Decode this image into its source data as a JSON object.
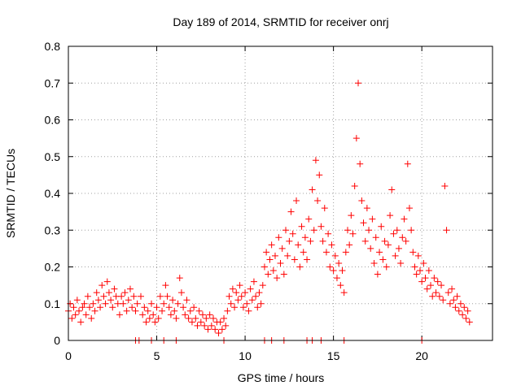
{
  "chart_data": {
    "type": "scatter",
    "title": "Day 189 of 2014, SRMTID for receiver onrj",
    "xlabel": "GPS time / hours",
    "ylabel": "SRMTID / TECUs",
    "xlim": [
      0,
      24
    ],
    "ylim": [
      0,
      0.8
    ],
    "xticks": [
      "0",
      "5",
      "10",
      "15",
      "20"
    ],
    "xtick_values": [
      0,
      5,
      10,
      15,
      20
    ],
    "yticks": [
      "0",
      "0.1",
      "0.2",
      "0.3",
      "0.4",
      "0.5",
      "0.6",
      "0.7",
      "0.8"
    ],
    "ytick_values": [
      0,
      0.1,
      0.2,
      0.3,
      0.4,
      0.5,
      0.6,
      0.7,
      0.8
    ],
    "grid": true,
    "marker": "+",
    "color": "#ff0000",
    "series": [
      {
        "name": "SRMTID",
        "points": [
          [
            0.0,
            0.08
          ],
          [
            0.1,
            0.1
          ],
          [
            0.2,
            0.06
          ],
          [
            0.3,
            0.09
          ],
          [
            0.4,
            0.07
          ],
          [
            0.5,
            0.11
          ],
          [
            0.6,
            0.08
          ],
          [
            0.7,
            0.05
          ],
          [
            0.8,
            0.09
          ],
          [
            0.9,
            0.1
          ],
          [
            1.0,
            0.07
          ],
          [
            1.1,
            0.12
          ],
          [
            1.2,
            0.09
          ],
          [
            1.3,
            0.06
          ],
          [
            1.4,
            0.1
          ],
          [
            1.5,
            0.08
          ],
          [
            1.6,
            0.13
          ],
          [
            1.7,
            0.11
          ],
          [
            1.8,
            0.09
          ],
          [
            1.9,
            0.15
          ],
          [
            2.0,
            0.12
          ],
          [
            2.1,
            0.1
          ],
          [
            2.2,
            0.16
          ],
          [
            2.3,
            0.13
          ],
          [
            2.4,
            0.11
          ],
          [
            2.5,
            0.09
          ],
          [
            2.6,
            0.14
          ],
          [
            2.7,
            0.12
          ],
          [
            2.8,
            0.1
          ],
          [
            2.9,
            0.07
          ],
          [
            3.0,
            0.12
          ],
          [
            3.1,
            0.1
          ],
          [
            3.2,
            0.13
          ],
          [
            3.3,
            0.08
          ],
          [
            3.4,
            0.11
          ],
          [
            3.5,
            0.14
          ],
          [
            3.6,
            0.09
          ],
          [
            3.7,
            0.12
          ],
          [
            3.8,
            0.08
          ],
          [
            3.9,
            0.1
          ],
          [
            4.1,
            0.12
          ],
          [
            4.2,
            0.07
          ],
          [
            4.3,
            0.09
          ],
          [
            4.4,
            0.05
          ],
          [
            4.5,
            0.08
          ],
          [
            4.6,
            0.06
          ],
          [
            4.7,
            0.1
          ],
          [
            4.8,
            0.07
          ],
          [
            4.9,
            0.05
          ],
          [
            5.0,
            0.09
          ],
          [
            5.1,
            0.06
          ],
          [
            5.2,
            0.12
          ],
          [
            5.3,
            0.08
          ],
          [
            5.4,
            0.1
          ],
          [
            5.5,
            0.15
          ],
          [
            5.6,
            0.12
          ],
          [
            5.7,
            0.09
          ],
          [
            5.8,
            0.07
          ],
          [
            5.9,
            0.11
          ],
          [
            6.0,
            0.08
          ],
          [
            6.1,
            0.06
          ],
          [
            6.2,
            0.1
          ],
          [
            6.3,
            0.17
          ],
          [
            6.4,
            0.13
          ],
          [
            6.5,
            0.09
          ],
          [
            6.6,
            0.07
          ],
          [
            6.7,
            0.11
          ],
          [
            6.8,
            0.06
          ],
          [
            6.9,
            0.08
          ],
          [
            7.0,
            0.05
          ],
          [
            7.1,
            0.09
          ],
          [
            7.2,
            0.06
          ],
          [
            7.3,
            0.04
          ],
          [
            7.4,
            0.08
          ],
          [
            7.5,
            0.05
          ],
          [
            7.6,
            0.07
          ],
          [
            7.7,
            0.04
          ],
          [
            7.8,
            0.06
          ],
          [
            7.9,
            0.03
          ],
          [
            8.0,
            0.07
          ],
          [
            8.1,
            0.04
          ],
          [
            8.2,
            0.06
          ],
          [
            8.3,
            0.03
          ],
          [
            8.4,
            0.05
          ],
          [
            8.5,
            0.02
          ],
          [
            8.6,
            0.05
          ],
          [
            8.7,
            0.03
          ],
          [
            8.8,
            0.06
          ],
          [
            8.9,
            0.04
          ],
          [
            9.0,
            0.08
          ],
          [
            9.1,
            0.12
          ],
          [
            9.2,
            0.1
          ],
          [
            9.3,
            0.14
          ],
          [
            9.4,
            0.09
          ],
          [
            9.5,
            0.13
          ],
          [
            9.6,
            0.11
          ],
          [
            9.7,
            0.15
          ],
          [
            9.8,
            0.12
          ],
          [
            9.9,
            0.09
          ],
          [
            10.0,
            0.13
          ],
          [
            10.1,
            0.1
          ],
          [
            10.2,
            0.08
          ],
          [
            10.3,
            0.14
          ],
          [
            10.4,
            0.11
          ],
          [
            10.5,
            0.16
          ],
          [
            10.6,
            0.12
          ],
          [
            10.7,
            0.09
          ],
          [
            10.8,
            0.13
          ],
          [
            10.9,
            0.1
          ],
          [
            11.0,
            0.15
          ],
          [
            11.1,
            0.2
          ],
          [
            11.2,
            0.24
          ],
          [
            11.3,
            0.18
          ],
          [
            11.4,
            0.22
          ],
          [
            11.5,
            0.26
          ],
          [
            11.6,
            0.19
          ],
          [
            11.7,
            0.23
          ],
          [
            11.8,
            0.17
          ],
          [
            11.9,
            0.28
          ],
          [
            12.0,
            0.21
          ],
          [
            12.1,
            0.25
          ],
          [
            12.2,
            0.18
          ],
          [
            12.3,
            0.3
          ],
          [
            12.4,
            0.23
          ],
          [
            12.5,
            0.27
          ],
          [
            12.6,
            0.35
          ],
          [
            12.7,
            0.29
          ],
          [
            12.8,
            0.22
          ],
          [
            12.9,
            0.38
          ],
          [
            13.0,
            0.26
          ],
          [
            13.1,
            0.2
          ],
          [
            13.2,
            0.31
          ],
          [
            13.3,
            0.24
          ],
          [
            13.4,
            0.28
          ],
          [
            13.5,
            0.22
          ],
          [
            13.6,
            0.33
          ],
          [
            13.7,
            0.27
          ],
          [
            13.8,
            0.41
          ],
          [
            13.9,
            0.3
          ],
          [
            14.0,
            0.49
          ],
          [
            14.1,
            0.38
          ],
          [
            14.2,
            0.45
          ],
          [
            14.3,
            0.31
          ],
          [
            14.4,
            0.27
          ],
          [
            14.5,
            0.36
          ],
          [
            14.6,
            0.24
          ],
          [
            14.7,
            0.29
          ],
          [
            14.8,
            0.2
          ],
          [
            14.9,
            0.26
          ],
          [
            15.0,
            0.19
          ],
          [
            15.1,
            0.23
          ],
          [
            15.2,
            0.17
          ],
          [
            15.3,
            0.21
          ],
          [
            15.4,
            0.15
          ],
          [
            15.5,
            0.19
          ],
          [
            15.6,
            0.13
          ],
          [
            15.7,
            0.24
          ],
          [
            15.8,
            0.3
          ],
          [
            15.9,
            0.26
          ],
          [
            16.0,
            0.34
          ],
          [
            16.1,
            0.29
          ],
          [
            16.2,
            0.42
          ],
          [
            16.3,
            0.55
          ],
          [
            16.4,
            0.7
          ],
          [
            16.5,
            0.48
          ],
          [
            16.6,
            0.38
          ],
          [
            16.7,
            0.32
          ],
          [
            16.8,
            0.27
          ],
          [
            16.9,
            0.36
          ],
          [
            17.0,
            0.3
          ],
          [
            17.1,
            0.25
          ],
          [
            17.2,
            0.33
          ],
          [
            17.3,
            0.21
          ],
          [
            17.4,
            0.28
          ],
          [
            17.5,
            0.18
          ],
          [
            17.6,
            0.24
          ],
          [
            17.7,
            0.31
          ],
          [
            17.8,
            0.22
          ],
          [
            17.9,
            0.27
          ],
          [
            18.0,
            0.2
          ],
          [
            18.1,
            0.26
          ],
          [
            18.2,
            0.34
          ],
          [
            18.3,
            0.41
          ],
          [
            18.4,
            0.29
          ],
          [
            18.5,
            0.23
          ],
          [
            18.6,
            0.3
          ],
          [
            18.7,
            0.25
          ],
          [
            18.8,
            0.21
          ],
          [
            18.9,
            0.28
          ],
          [
            19.0,
            0.33
          ],
          [
            19.1,
            0.27
          ],
          [
            19.2,
            0.48
          ],
          [
            19.3,
            0.36
          ],
          [
            19.4,
            0.3
          ],
          [
            19.5,
            0.24
          ],
          [
            19.6,
            0.2
          ],
          [
            19.7,
            0.18
          ],
          [
            19.8,
            0.23
          ],
          [
            19.9,
            0.19
          ],
          [
            20.0,
            0.16
          ],
          [
            20.1,
            0.21
          ],
          [
            20.2,
            0.17
          ],
          [
            20.3,
            0.14
          ],
          [
            20.4,
            0.19
          ],
          [
            20.5,
            0.15
          ],
          [
            20.6,
            0.12
          ],
          [
            20.7,
            0.17
          ],
          [
            20.8,
            0.13
          ],
          [
            20.9,
            0.16
          ],
          [
            21.0,
            0.12
          ],
          [
            21.1,
            0.15
          ],
          [
            21.2,
            0.11
          ],
          [
            21.3,
            0.42
          ],
          [
            21.4,
            0.3
          ],
          [
            21.5,
            0.13
          ],
          [
            21.6,
            0.1
          ],
          [
            21.7,
            0.14
          ],
          [
            21.8,
            0.11
          ],
          [
            21.9,
            0.09
          ],
          [
            22.0,
            0.12
          ],
          [
            22.1,
            0.08
          ],
          [
            22.2,
            0.1
          ],
          [
            22.3,
            0.07
          ],
          [
            22.4,
            0.09
          ],
          [
            22.5,
            0.06
          ],
          [
            22.6,
            0.08
          ],
          [
            22.7,
            0.05
          ],
          [
            3.8,
            0.0
          ],
          [
            4.0,
            0.0
          ],
          [
            4.7,
            0.0
          ],
          [
            5.4,
            0.0
          ],
          [
            6.1,
            0.0
          ],
          [
            8.8,
            0.0
          ],
          [
            11.1,
            0.0
          ],
          [
            11.5,
            0.0
          ],
          [
            12.2,
            0.0
          ],
          [
            13.5,
            0.0
          ],
          [
            13.8,
            0.0
          ],
          [
            14.3,
            0.0
          ],
          [
            15.6,
            0.0
          ],
          [
            20.0,
            0.0
          ]
        ]
      }
    ]
  }
}
